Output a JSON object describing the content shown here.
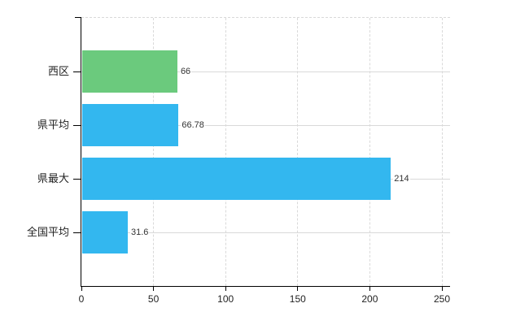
{
  "chart_data": {
    "type": "bar",
    "orientation": "horizontal",
    "title": "",
    "categories": [
      "西区",
      "県平均",
      "県最大",
      "全国平均"
    ],
    "values": [
      66,
      66.78,
      214,
      31.6
    ],
    "value_labels": [
      "66",
      "66.78",
      "214",
      "31.6"
    ],
    "bar_colors": [
      "#6bca7d",
      "#33b7ef",
      "#33b7ef",
      "#33b7ef"
    ],
    "xlim": [
      0,
      250
    ],
    "x_ticks": [
      0,
      50,
      100,
      150,
      200,
      250
    ],
    "grid": true,
    "legend_position": "none",
    "background_color": "#ffffff",
    "axis_color": "#000000",
    "gridline_color": "#d9d9d9",
    "text_color": "#333333"
  }
}
